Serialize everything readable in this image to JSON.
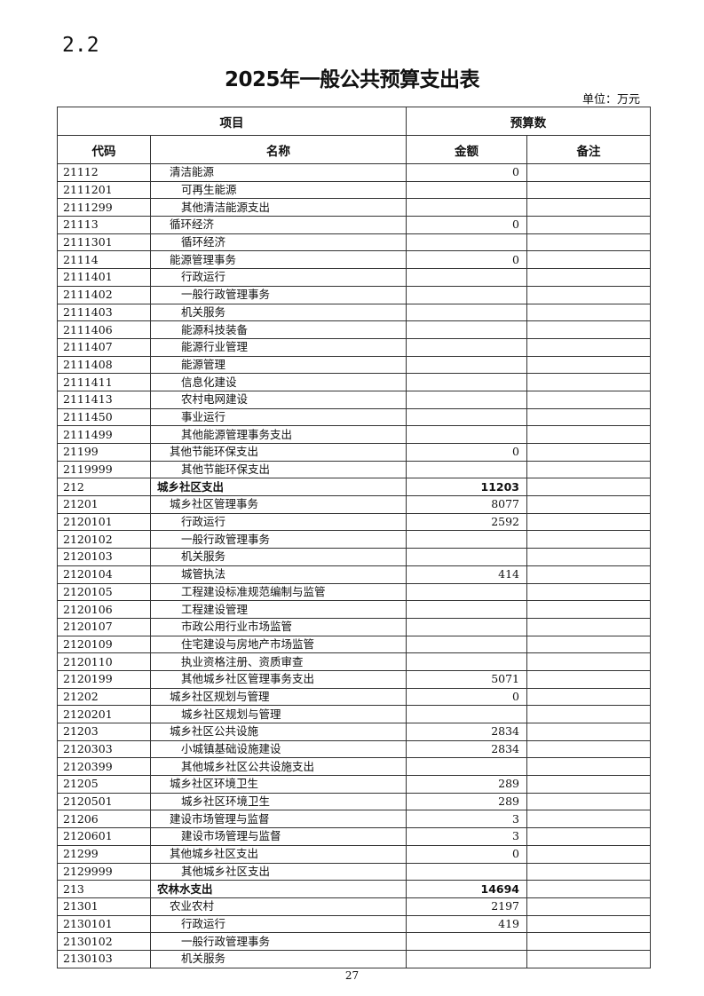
{
  "section": "2.2",
  "title": "2025年一般公共预算支出表",
  "unit": "单位：万元",
  "header": {
    "item": "项目",
    "budget": "预算数",
    "code": "代码",
    "name": "名称",
    "amount": "金额",
    "note": "备注"
  },
  "rows": [
    {
      "code": "21112",
      "name": "清洁能源",
      "amount": "0",
      "level": 2
    },
    {
      "code": "2111201",
      "name": "可再生能源",
      "amount": "",
      "level": 3
    },
    {
      "code": "2111299",
      "name": "其他清洁能源支出",
      "amount": "",
      "level": 3
    },
    {
      "code": "21113",
      "name": "循环经济",
      "amount": "0",
      "level": 2
    },
    {
      "code": "2111301",
      "name": "循环经济",
      "amount": "",
      "level": 3
    },
    {
      "code": "21114",
      "name": "能源管理事务",
      "amount": "0",
      "level": 2
    },
    {
      "code": "2111401",
      "name": "行政运行",
      "amount": "",
      "level": 3
    },
    {
      "code": "2111402",
      "name": "一般行政管理事务",
      "amount": "",
      "level": 3
    },
    {
      "code": "2111403",
      "name": "机关服务",
      "amount": "",
      "level": 3
    },
    {
      "code": "2111406",
      "name": "能源科技装备",
      "amount": "",
      "level": 3
    },
    {
      "code": "2111407",
      "name": "能源行业管理",
      "amount": "",
      "level": 3
    },
    {
      "code": "2111408",
      "name": "能源管理",
      "amount": "",
      "level": 3
    },
    {
      "code": "2111411",
      "name": "信息化建设",
      "amount": "",
      "level": 3
    },
    {
      "code": "2111413",
      "name": "农村电网建设",
      "amount": "",
      "level": 3
    },
    {
      "code": "2111450",
      "name": "事业运行",
      "amount": "",
      "level": 3
    },
    {
      "code": "2111499",
      "name": "其他能源管理事务支出",
      "amount": "",
      "level": 3
    },
    {
      "code": "21199",
      "name": "其他节能环保支出",
      "amount": "0",
      "level": 2
    },
    {
      "code": "2119999",
      "name": "其他节能环保支出",
      "amount": "",
      "level": 3
    },
    {
      "code": "212",
      "name": "城乡社区支出",
      "amount": "11203",
      "level": 1
    },
    {
      "code": "21201",
      "name": "城乡社区管理事务",
      "amount": "8077",
      "level": 2
    },
    {
      "code": "2120101",
      "name": "行政运行",
      "amount": "2592",
      "level": 3
    },
    {
      "code": "2120102",
      "name": "一般行政管理事务",
      "amount": "",
      "level": 3
    },
    {
      "code": "2120103",
      "name": "机关服务",
      "amount": "",
      "level": 3
    },
    {
      "code": "2120104",
      "name": "城管执法",
      "amount": "414",
      "level": 3
    },
    {
      "code": "2120105",
      "name": "工程建设标准规范编制与监管",
      "amount": "",
      "level": 3
    },
    {
      "code": "2120106",
      "name": "工程建设管理",
      "amount": "",
      "level": 3
    },
    {
      "code": "2120107",
      "name": "市政公用行业市场监管",
      "amount": "",
      "level": 3
    },
    {
      "code": "2120109",
      "name": "住宅建设与房地产市场监管",
      "amount": "",
      "level": 3
    },
    {
      "code": "2120110",
      "name": "执业资格注册、资质审查",
      "amount": "",
      "level": 3
    },
    {
      "code": "2120199",
      "name": "其他城乡社区管理事务支出",
      "amount": "5071",
      "level": 3
    },
    {
      "code": "21202",
      "name": "城乡社区规划与管理",
      "amount": "0",
      "level": 2
    },
    {
      "code": "2120201",
      "name": "城乡社区规划与管理",
      "amount": "",
      "level": 3
    },
    {
      "code": "21203",
      "name": "城乡社区公共设施",
      "amount": "2834",
      "level": 2
    },
    {
      "code": "2120303",
      "name": "小城镇基础设施建设",
      "amount": "2834",
      "level": 3
    },
    {
      "code": "2120399",
      "name": "其他城乡社区公共设施支出",
      "amount": "",
      "level": 3
    },
    {
      "code": "21205",
      "name": "城乡社区环境卫生",
      "amount": "289",
      "level": 2
    },
    {
      "code": "2120501",
      "name": "城乡社区环境卫生",
      "amount": "289",
      "level": 3
    },
    {
      "code": "21206",
      "name": "建设市场管理与监督",
      "amount": "3",
      "level": 2
    },
    {
      "code": "2120601",
      "name": "建设市场管理与监督",
      "amount": "3",
      "level": 3
    },
    {
      "code": "21299",
      "name": "其他城乡社区支出",
      "amount": "0",
      "level": 2
    },
    {
      "code": "2129999",
      "name": "其他城乡社区支出",
      "amount": "",
      "level": 3
    },
    {
      "code": "213",
      "name": "农林水支出",
      "amount": "14694",
      "level": 1
    },
    {
      "code": "21301",
      "name": "农业农村",
      "amount": "2197",
      "level": 2
    },
    {
      "code": "2130101",
      "name": "行政运行",
      "amount": "419",
      "level": 3
    },
    {
      "code": "2130102",
      "name": "一般行政管理事务",
      "amount": "",
      "level": 3
    },
    {
      "code": "2130103",
      "name": "机关服务",
      "amount": "",
      "level": 3
    }
  ],
  "page_number": "27"
}
